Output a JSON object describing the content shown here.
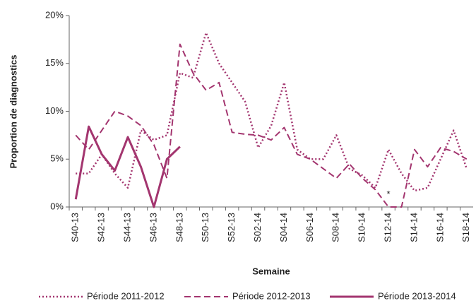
{
  "chart_data": {
    "type": "line",
    "y_label": "Proportion de diagnostics",
    "x_label": "Semaine",
    "categories": [
      "S40-13",
      null,
      "S42-13",
      null,
      "S44-13",
      null,
      "S46-13",
      null,
      "S48-13",
      null,
      "S50-13",
      null,
      "S52-13",
      null,
      "S02-14",
      null,
      "S04-14",
      null,
      "S06-14",
      null,
      "S08-14",
      null,
      "S10-14",
      null,
      "S12-14",
      null,
      "S14-14",
      null,
      "S16-14",
      null,
      "S18-14"
    ],
    "ylim": [
      0,
      20
    ],
    "yticks": [
      {
        "value": 0,
        "label": "0%"
      },
      {
        "value": 5,
        "label": "5%"
      },
      {
        "value": 10,
        "label": "10%"
      },
      {
        "value": 15,
        "label": "15%"
      },
      {
        "value": 20,
        "label": "20%"
      }
    ],
    "series": [
      {
        "name": "Période 2011-2012",
        "color": "#a3356f",
        "dash": "dotted",
        "values": [
          3.5,
          3.5,
          5.5,
          3.5,
          2,
          8,
          7,
          7.5,
          14,
          13.5,
          18.2,
          15,
          13,
          11,
          6.2,
          8.5,
          13,
          6,
          5,
          5,
          7.5,
          4,
          3.3,
          2,
          6,
          3.5,
          1.7,
          2,
          5,
          8,
          4
        ]
      },
      {
        "name": "Période 2012-2013",
        "color": "#a3356f",
        "dash": "dashed",
        "values": [
          7.5,
          6,
          8,
          10,
          9.5,
          8.5,
          6.5,
          3,
          17,
          14,
          12.2,
          13,
          7.8,
          7.6,
          7.5,
          7,
          8.3,
          5.5,
          5,
          4,
          3,
          4.5,
          3,
          1.8,
          0,
          0,
          6,
          4.2,
          6.2,
          5.8,
          5
        ]
      },
      {
        "name": "Période 2013-2014",
        "color": "#a3356f",
        "dash": "solid",
        "values": [
          0.8,
          8.4,
          5.5,
          3.8,
          7.3,
          4.2,
          0,
          5,
          6.3,
          null,
          null,
          null,
          null,
          null,
          null,
          null,
          null,
          null,
          null,
          null,
          null,
          null,
          null,
          null,
          null,
          null,
          null,
          null,
          null,
          null,
          null
        ]
      }
    ],
    "annotations": [
      {
        "text": "*",
        "category": 24,
        "y": 1.3
      }
    ],
    "legend": "bottom"
  }
}
